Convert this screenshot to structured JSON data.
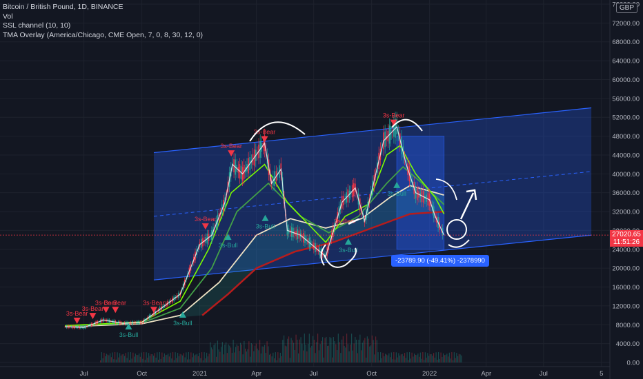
{
  "header": {
    "title": "Bitcoin / British Pound, 1D, BINANCE",
    "indicators": [
      "Vol",
      "SSL channel (10, 10)",
      "TMA Overlay (America/Chicago, CME Open, 7, 0, 8, 30, 12, 0)"
    ]
  },
  "currency": "GBP",
  "last_price": {
    "value": "27020.65",
    "countdown": "11:51:26"
  },
  "measurement": "-23789.90 (-49.41%) -2378990",
  "colors": {
    "background": "#131722",
    "bear": "#f23645",
    "bull": "#26a69a",
    "channel": "#2962ff"
  },
  "chart_data": {
    "type": "line",
    "ylim": [
      0,
      76000
    ],
    "y_ticks": [
      0,
      4000,
      8000,
      12000,
      16000,
      20000,
      24000,
      28000,
      32000,
      36000,
      40000,
      44000,
      48000,
      52000,
      56000,
      60000,
      64000,
      68000,
      72000,
      76000
    ],
    "y_tick_labels": [
      "0.00",
      "4000.00",
      "8000.00",
      "12000.00",
      "16000.00",
      "20000.00",
      "24000.00",
      "28000.00",
      "32000.00",
      "36000.00",
      "40000.00",
      "44000.00",
      "48000.00",
      "52000.00",
      "56000.00",
      "60000.00",
      "64000.00",
      "68000.00",
      "72000.00",
      "76000.00"
    ],
    "x_ticks": [
      {
        "label": "Jul",
        "date": "2020-07-01"
      },
      {
        "label": "Oct",
        "date": "2020-10-01"
      },
      {
        "label": "2021",
        "date": "2021-01-01"
      },
      {
        "label": "Apr",
        "date": "2021-04-01"
      },
      {
        "label": "Jul",
        "date": "2021-07-01"
      },
      {
        "label": "Oct",
        "date": "2021-10-01"
      },
      {
        "label": "2022",
        "date": "2022-01-01"
      },
      {
        "label": "Apr",
        "date": "2022-04-01"
      },
      {
        "label": "Jul",
        "date": "2022-07-01"
      },
      {
        "label": "5",
        "date": "2022-10-01"
      }
    ],
    "price": [
      {
        "date": "2020-06-01",
        "value": 7600
      },
      {
        "date": "2020-07-01",
        "value": 7400
      },
      {
        "date": "2020-08-01",
        "value": 9000
      },
      {
        "date": "2020-09-01",
        "value": 8300
      },
      {
        "date": "2020-10-01",
        "value": 8500
      },
      {
        "date": "2020-11-01",
        "value": 11500
      },
      {
        "date": "2020-12-01",
        "value": 14500
      },
      {
        "date": "2021-01-01",
        "value": 25000
      },
      {
        "date": "2021-01-20",
        "value": 27000
      },
      {
        "date": "2021-02-10",
        "value": 34000
      },
      {
        "date": "2021-02-22",
        "value": 42000
      },
      {
        "date": "2021-03-10",
        "value": 40000
      },
      {
        "date": "2021-04-14",
        "value": 46500
      },
      {
        "date": "2021-04-25",
        "value": 38000
      },
      {
        "date": "2021-05-10",
        "value": 41000
      },
      {
        "date": "2021-05-20",
        "value": 28000
      },
      {
        "date": "2021-06-10",
        "value": 27000
      },
      {
        "date": "2021-07-20",
        "value": 22500
      },
      {
        "date": "2021-08-15",
        "value": 34000
      },
      {
        "date": "2021-09-05",
        "value": 37000
      },
      {
        "date": "2021-09-20",
        "value": 30000
      },
      {
        "date": "2021-10-20",
        "value": 47000
      },
      {
        "date": "2021-11-10",
        "value": 50000
      },
      {
        "date": "2021-11-25",
        "value": 42000
      },
      {
        "date": "2021-12-10",
        "value": 36000
      },
      {
        "date": "2022-01-01",
        "value": 34500
      },
      {
        "date": "2022-01-10",
        "value": 31000
      },
      {
        "date": "2022-01-24",
        "value": 27020
      }
    ],
    "ma_fast": [
      {
        "date": "2020-06-01",
        "value": 7800
      },
      {
        "date": "2020-10-01",
        "value": 8600
      },
      {
        "date": "2020-12-01",
        "value": 13000
      },
      {
        "date": "2021-01-15",
        "value": 24000
      },
      {
        "date": "2021-02-20",
        "value": 36000
      },
      {
        "date": "2021-04-14",
        "value": 42000
      },
      {
        "date": "2021-05-20",
        "value": 34000
      },
      {
        "date": "2021-07-20",
        "value": 25500
      },
      {
        "date": "2021-08-20",
        "value": 31000
      },
      {
        "date": "2021-09-25",
        "value": 33500
      },
      {
        "date": "2021-10-25",
        "value": 44000
      },
      {
        "date": "2021-11-15",
        "value": 46000
      },
      {
        "date": "2021-12-10",
        "value": 40000
      },
      {
        "date": "2022-01-10",
        "value": 35000
      },
      {
        "date": "2022-01-24",
        "value": 31500
      }
    ],
    "ma_mid": [
      {
        "date": "2020-06-01",
        "value": 7700
      },
      {
        "date": "2020-10-01",
        "value": 8400
      },
      {
        "date": "2020-12-01",
        "value": 11500
      },
      {
        "date": "2021-01-20",
        "value": 20000
      },
      {
        "date": "2021-03-01",
        "value": 32000
      },
      {
        "date": "2021-04-20",
        "value": 38000
      },
      {
        "date": "2021-06-10",
        "value": 31000
      },
      {
        "date": "2021-07-25",
        "value": 27500
      },
      {
        "date": "2021-09-10",
        "value": 31000
      },
      {
        "date": "2021-10-25",
        "value": 38000
      },
      {
        "date": "2021-11-20",
        "value": 41500
      },
      {
        "date": "2021-12-20",
        "value": 38000
      },
      {
        "date": "2022-01-24",
        "value": 33500
      }
    ],
    "ma_slow": [
      {
        "date": "2020-06-01",
        "value": 7600
      },
      {
        "date": "2020-10-01",
        "value": 8200
      },
      {
        "date": "2020-12-01",
        "value": 10000
      },
      {
        "date": "2021-02-01",
        "value": 17000
      },
      {
        "date": "2021-04-01",
        "value": 27000
      },
      {
        "date": "2021-05-25",
        "value": 30500
      },
      {
        "date": "2021-07-20",
        "value": 28500
      },
      {
        "date": "2021-09-15",
        "value": 30500
      },
      {
        "date": "2021-10-30",
        "value": 35000
      },
      {
        "date": "2021-12-01",
        "value": 37500
      },
      {
        "date": "2022-01-24",
        "value": 35500
      }
    ],
    "ma_long": [
      {
        "date": "2021-01-05",
        "value": 10000
      },
      {
        "date": "2021-02-15",
        "value": 14500
      },
      {
        "date": "2021-04-01",
        "value": 20000
      },
      {
        "date": "2021-06-01",
        "value": 23500
      },
      {
        "date": "2021-08-01",
        "value": 25500
      },
      {
        "date": "2021-10-01",
        "value": 28500
      },
      {
        "date": "2021-12-01",
        "value": 31500
      },
      {
        "date": "2022-01-24",
        "value": 32000
      }
    ],
    "channel": {
      "start": {
        "date": "2020-10-20",
        "lower": 17500,
        "upper": 44500
      },
      "end": {
        "date": "2022-09-15",
        "lower": 27000,
        "upper": 54000
      }
    },
    "measure_box": {
      "start_date": "2021-11-10",
      "end_date": "2022-01-24",
      "top": 48000,
      "bottom": 24000
    },
    "signals": [
      {
        "label": "3s-Bear",
        "date": "2020-06-20",
        "value": 9500,
        "kind": "bear"
      },
      {
        "label": "3s-Bear",
        "date": "2020-07-15",
        "value": 10500,
        "kind": "bear"
      },
      {
        "label": "3s-Bear",
        "date": "2020-08-05",
        "value": 11800,
        "kind": "bear"
      },
      {
        "label": "3s-Bear",
        "date": "2020-08-20",
        "value": 11800,
        "kind": "bear"
      },
      {
        "label": "3s-Bear",
        "date": "2020-10-20",
        "value": 11800,
        "kind": "bear"
      },
      {
        "label": "3s-Bull",
        "date": "2020-09-10",
        "value": 7000,
        "kind": "bull"
      },
      {
        "label": "3s-Bull",
        "date": "2020-12-05",
        "value": 9500,
        "kind": "bull"
      },
      {
        "label": "3s-Bear",
        "date": "2021-01-10",
        "value": 29500,
        "kind": "bear"
      },
      {
        "label": "3s-Bull",
        "date": "2021-02-15",
        "value": 26000,
        "kind": "bull"
      },
      {
        "label": "3s-Bear",
        "date": "2021-02-20",
        "value": 45000,
        "kind": "bear"
      },
      {
        "label": "3s-Bear",
        "date": "2021-04-14",
        "value": 48000,
        "kind": "bear"
      },
      {
        "label": "3s-Bull",
        "date": "2021-04-15",
        "value": 30000,
        "kind": "bull"
      },
      {
        "label": "3s-Bull",
        "date": "2021-08-25",
        "value": 25000,
        "kind": "bull"
      },
      {
        "label": "3s-Bear",
        "date": "2021-11-05",
        "value": 51500,
        "kind": "bear"
      },
      {
        "label": "3s-Bull",
        "date": "2021-11-10",
        "value": 37000,
        "kind": "bull"
      }
    ],
    "extra_labels": [
      {
        "label": "3s-Bear",
        "date": "2021-08-20",
        "value": 29500
      }
    ]
  }
}
